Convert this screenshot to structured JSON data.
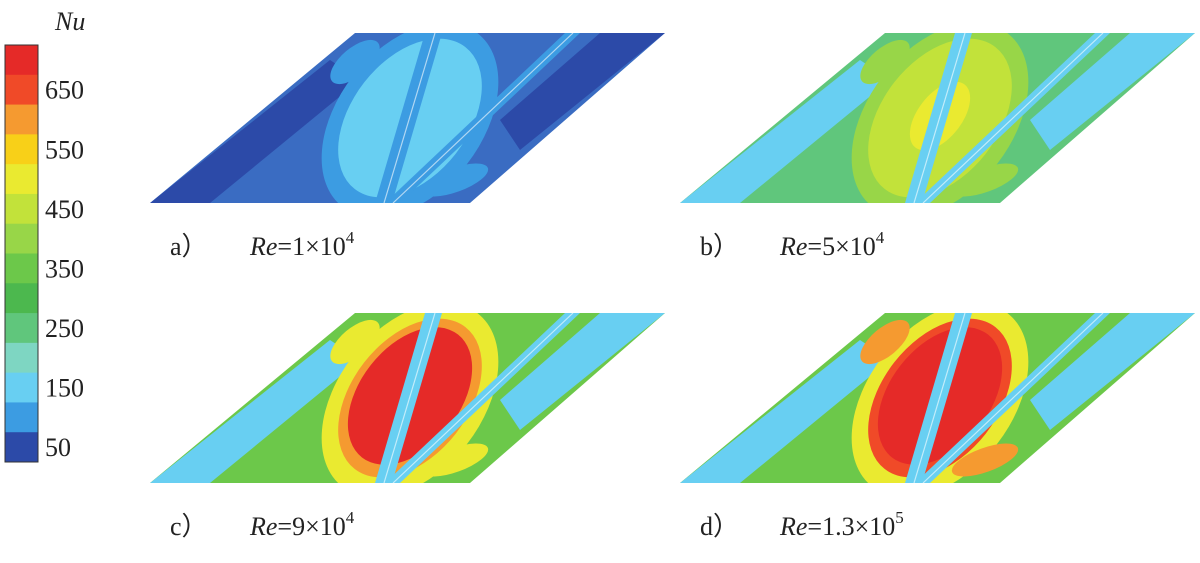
{
  "colorbar": {
    "title": "Nu",
    "labels": [
      "650",
      "550",
      "450",
      "350",
      "250",
      "150",
      "50"
    ],
    "colors": [
      "#e52a28",
      "#f04a28",
      "#f59a30",
      "#f8d018",
      "#eaea30",
      "#c2e23a",
      "#98d648",
      "#6cc84a",
      "#4cb84e",
      "#60c67c",
      "#7ed6c2",
      "#68cff2",
      "#3c9ce2",
      "#2c4aa8"
    ]
  },
  "panels": [
    {
      "label": "a）",
      "var": "Re",
      "expr": "=1×10",
      "exp": "4"
    },
    {
      "label": "b）",
      "var": "Re",
      "expr": "=5×10",
      "exp": "4"
    },
    {
      "label": "c）",
      "var": "Re",
      "expr": "=9×10",
      "exp": "4"
    },
    {
      "label": "d）",
      "var": "Re",
      "expr": "=1.3×10",
      "exp": "5"
    }
  ]
}
